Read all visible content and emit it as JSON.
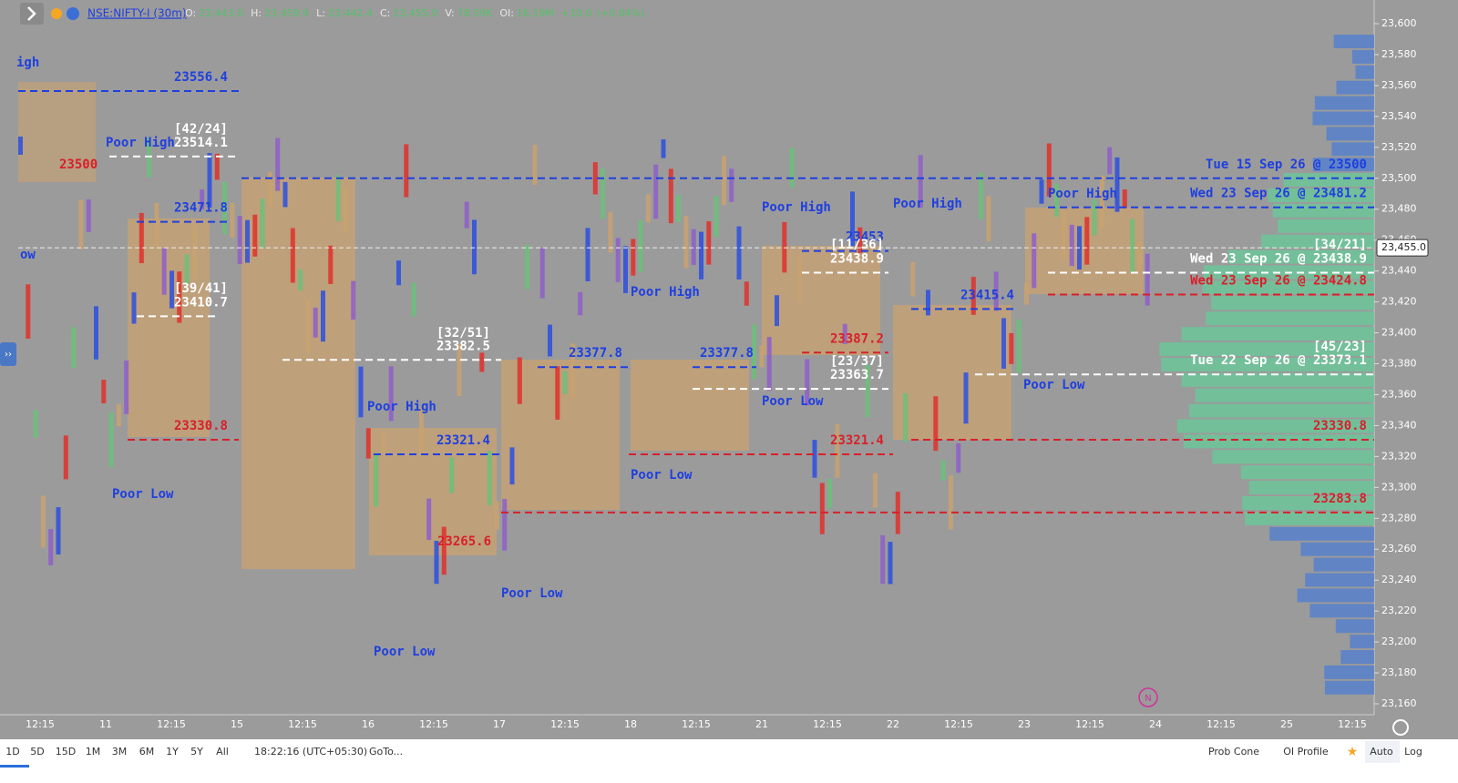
{
  "header": {
    "symbol": "NSE:NIFTY-I (30m)",
    "fields": [
      {
        "label": "O:",
        "value": "23,443.0"
      },
      {
        "label": "H:",
        "value": "23,459.9"
      },
      {
        "label": "L:",
        "value": "23,442.4"
      },
      {
        "label": "C:",
        "value": "23,455.0"
      },
      {
        "label": "V:",
        "value": "78.59K"
      },
      {
        "label": "OI:",
        "value": "16.19M"
      }
    ],
    "change": "+10.0",
    "change_pct": "(+0.04%)"
  },
  "price_axis": {
    "ticks": [
      {
        "value": 23600,
        "label": "23,600"
      },
      {
        "value": 23580,
        "label": "23,580"
      },
      {
        "value": 23560,
        "label": "23,560"
      },
      {
        "value": 23540,
        "label": "23,540"
      },
      {
        "value": 23520,
        "label": "23,520"
      },
      {
        "value": 23500,
        "label": "23,500"
      },
      {
        "value": 23480,
        "label": "23,480"
      },
      {
        "value": 23460,
        "label": "23,460"
      },
      {
        "value": 23440,
        "label": "23,440"
      },
      {
        "value": 23420,
        "label": "23,420"
      },
      {
        "value": 23400,
        "label": "23,400"
      },
      {
        "value": 23380,
        "label": "23,380"
      },
      {
        "value": 23360,
        "label": "23,360"
      },
      {
        "value": 23340,
        "label": "23,340"
      },
      {
        "value": 23320,
        "label": "23,320"
      },
      {
        "value": 23300,
        "label": "23,300"
      },
      {
        "value": 23280,
        "label": "23,280"
      },
      {
        "value": 23260,
        "label": "23,260"
      },
      {
        "value": 23240,
        "label": "23,240"
      },
      {
        "value": 23220,
        "label": "23,220"
      },
      {
        "value": 23200,
        "label": "23,200"
      },
      {
        "value": 23180,
        "label": "23,180"
      },
      {
        "value": 23160,
        "label": "23,160"
      }
    ],
    "current": {
      "value": 23455,
      "label": "23,455.0"
    }
  },
  "time_axis": {
    "labels": [
      "12:15",
      "11",
      "12:15",
      "15",
      "12:15",
      "16",
      "12:15",
      "17",
      "12:15",
      "18",
      "12:15",
      "21",
      "12:15",
      "22",
      "12:15",
      "23",
      "12:15",
      "24",
      "12:15",
      "25",
      "12:15"
    ]
  },
  "levels": [
    {
      "text": "23556.4",
      "price": 23556.4,
      "color": "#1f3fe0"
    },
    {
      "text": "23514.1",
      "price": 23514.1,
      "color": "#ffffff"
    },
    {
      "text": "23471.8",
      "price": 23471.8,
      "color": "#1f3fe0"
    },
    {
      "text": "23410.7",
      "price": 23410.7,
      "color": "#ffffff"
    },
    {
      "text": "23330.8",
      "price": 23330.8,
      "color": "#d8202a"
    },
    {
      "text": "23382.5",
      "price": 23382.5,
      "color": "#ffffff"
    },
    {
      "text": "23321.4",
      "price": 23321.4,
      "color": "#1f3fe0"
    },
    {
      "text": "23377.8",
      "price": 23377.8,
      "color": "#1f3fe0"
    },
    {
      "text": "23377.8",
      "price": 23377.8,
      "color": "#1f3fe0"
    },
    {
      "text": "23453",
      "price": 23453,
      "color": "#1f3fe0"
    },
    {
      "text": "23438.9",
      "price": 23438.9,
      "color": "#ffffff"
    },
    {
      "text": "23387.2",
      "price": 23387.2,
      "color": "#d8202a"
    },
    {
      "text": "23363.7",
      "price": 23363.7,
      "color": "#ffffff"
    },
    {
      "text": "23321.4",
      "price": 23321.4,
      "color": "#d8202a"
    },
    {
      "text": "23415.4",
      "price": 23415.4,
      "color": "#1f3fe0"
    },
    {
      "text": "Tue 15 Sep 26 @ 23500",
      "price": 23500,
      "color": "#1f3fe0"
    },
    {
      "text": "Wed 23 Sep 26 @ 23481.2",
      "price": 23481.2,
      "color": "#1f3fe0"
    },
    {
      "text": "Wed 23 Sep 26 @ 23438.9",
      "price": 23438.9,
      "color": "#ffffff"
    },
    {
      "text": "Wed 23 Sep 26 @ 23424.8",
      "price": 23424.8,
      "color": "#d8202a"
    },
    {
      "text": "Tue 22 Sep 26 @ 23373.1",
      "price": 23373.1,
      "color": "#ffffff"
    },
    {
      "text": "23330.8",
      "price": 23330.8,
      "color": "#d8202a"
    },
    {
      "text": "23283.8",
      "price": 23283.8,
      "color": "#d8202a"
    }
  ],
  "notes": [
    {
      "text": "igh",
      "color": "#1f3fe0"
    },
    {
      "text": "ow",
      "color": "#1f3fe0"
    },
    {
      "text": "23500",
      "color": "#d8202a"
    },
    {
      "text": "Poor High",
      "color": "#1f3fe0"
    },
    {
      "text": "Poor Low",
      "color": "#1f3fe0"
    },
    {
      "text": "[42/24]",
      "color": "#ffffff"
    },
    {
      "text": "[39/41]",
      "color": "#ffffff"
    },
    {
      "text": "[32/51]",
      "color": "#ffffff"
    },
    {
      "text": "Poor High",
      "color": "#1f3fe0"
    },
    {
      "text": "Poor Low",
      "color": "#1f3fe0"
    },
    {
      "text": "23265.6",
      "color": "#d8202a"
    },
    {
      "text": "Poor Low",
      "color": "#1f3fe0"
    },
    {
      "text": "Poor High",
      "color": "#1f3fe0"
    },
    {
      "text": "Poor Low",
      "color": "#1f3fe0"
    },
    {
      "text": "Poor High",
      "color": "#1f3fe0"
    },
    {
      "text": "Poor Low",
      "color": "#1f3fe0"
    },
    {
      "text": "[11/36]",
      "color": "#ffffff"
    },
    {
      "text": "[23/37]",
      "color": "#ffffff"
    },
    {
      "text": "Poor High",
      "color": "#1f3fe0"
    },
    {
      "text": "Poor High",
      "color": "#1f3fe0"
    },
    {
      "text": "Poor Low",
      "color": "#1f3fe0"
    },
    {
      "text": "[34/21]",
      "color": "#ffffff"
    },
    {
      "text": "[45/23]",
      "color": "#ffffff"
    }
  ],
  "toolbar": {
    "ranges": [
      "1D",
      "5D",
      "15D",
      "1M",
      "3M",
      "6M",
      "1Y",
      "5Y",
      "All"
    ],
    "clock": "18:22:16 (UTC+05:30)",
    "goto": "GoTo...",
    "right": [
      "Prob Cone",
      "OI Profile",
      "Auto",
      "Log"
    ]
  }
}
